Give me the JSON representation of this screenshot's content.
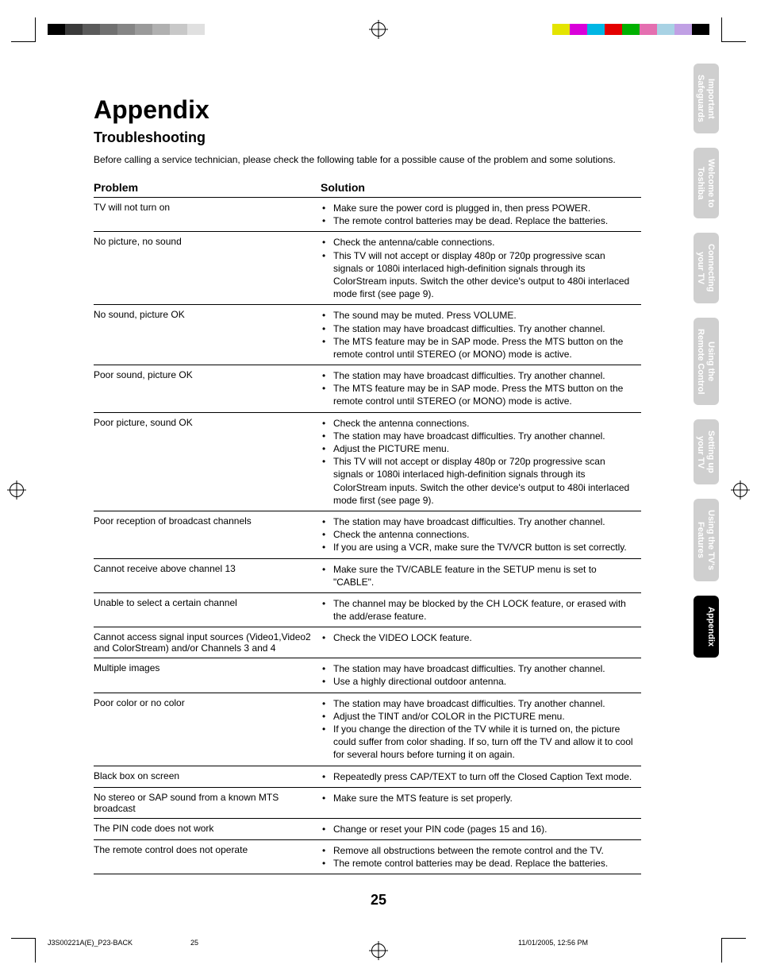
{
  "page": {
    "title": "Appendix",
    "subtitle": "Troubleshooting",
    "intro": "Before calling a service technician, please check the following table for a possible cause of the problem and some solutions.",
    "headers": {
      "problem": "Problem",
      "solution": "Solution"
    },
    "page_number": "25",
    "footer": {
      "doc": "J3S00221A(E)_P23-BACK",
      "page": "25",
      "date": "11/01/2005, 12:56 PM"
    }
  },
  "colorbars": {
    "left": [
      "#000000",
      "#3a3a3a",
      "#5a5a5a",
      "#707070",
      "#858585",
      "#9a9a9a",
      "#b0b0b0",
      "#c8c8c8",
      "#e0e0e0",
      "#ffffff"
    ],
    "right": [
      "#ffffff",
      "#e4e400",
      "#d900d9",
      "#00b6e4",
      "#e40000",
      "#00b000",
      "#e46fb0",
      "#a8d2e4",
      "#c0a0e4",
      "#000000"
    ]
  },
  "tabs": [
    {
      "label": "Important\nSafeguards",
      "active": false
    },
    {
      "label": "Welcome to\nToshiba",
      "active": false
    },
    {
      "label": "Connecting\nyour TV",
      "active": false
    },
    {
      "label": "Using the\nRemote Control",
      "active": false
    },
    {
      "label": "Setting up\nyour TV",
      "active": false
    },
    {
      "label": "Using the TV's\nFeatures",
      "active": false
    },
    {
      "label": "Appendix",
      "active": true
    }
  ],
  "rows": [
    {
      "problem": "TV will not turn on",
      "solutions": [
        "Make sure the power cord is plugged in, then press POWER.",
        "The remote control batteries may be dead. Replace the batteries."
      ]
    },
    {
      "problem": "No picture, no sound",
      "solutions": [
        "Check the antenna/cable connections.",
        "This TV will not accept or display 480p or 720p progressive scan signals or 1080i interlaced high-definition signals through its ColorStream inputs. Switch the other device's output to 480i interlaced mode first (see page 9)."
      ]
    },
    {
      "problem": "No sound, picture OK",
      "solutions": [
        "The sound may be muted. Press VOLUME.",
        "The station may have broadcast difficulties. Try another channel.",
        "The MTS feature may be in SAP mode. Press the MTS button on the remote control until STEREO (or MONO) mode is active."
      ]
    },
    {
      "problem": "Poor sound, picture OK",
      "solutions": [
        "The station may have broadcast difficulties. Try another channel.",
        "The MTS feature may be in SAP mode. Press the MTS button on the remote control until STEREO (or MONO) mode is active."
      ]
    },
    {
      "problem": "Poor picture, sound OK",
      "solutions": [
        "Check the antenna connections.",
        "The station may have broadcast difficulties. Try another channel.",
        "Adjust the PICTURE menu.",
        "This TV will not accept or display 480p or 720p progressive scan signals or 1080i interlaced high-definition signals through its ColorStream inputs. Switch the other device's output to 480i interlaced mode first (see page 9)."
      ]
    },
    {
      "problem": "Poor reception of broadcast channels",
      "solutions": [
        "The station may have broadcast difficulties. Try another channel.",
        "Check the antenna connections.",
        "If you are using a VCR, make sure the TV/VCR button is set correctly."
      ]
    },
    {
      "problem": "Cannot receive above channel 13",
      "solutions": [
        "Make sure the TV/CABLE feature in the SETUP menu is set to \"CABLE\"."
      ]
    },
    {
      "problem": "Unable to select a certain channel",
      "solutions": [
        "The channel may be blocked by the CH LOCK feature, or erased with the add/erase feature."
      ]
    },
    {
      "problem": "Cannot access signal input sources (Video1,Video2 and ColorStream) and/or Channels 3 and 4",
      "solutions": [
        "Check the VIDEO LOCK feature."
      ]
    },
    {
      "problem": "Multiple images",
      "solutions": [
        "The station may have broadcast difficulties. Try another channel.",
        "Use a highly directional outdoor antenna."
      ]
    },
    {
      "problem": "Poor color or no color",
      "solutions": [
        "The station may have broadcast difficulties. Try another channel.",
        "Adjust the TINT and/or COLOR in the PICTURE menu.",
        "If you change the direction of the TV while it is turned on, the picture could suffer from color shading. If so, turn off the TV and allow it to cool for several hours before turning it on again."
      ]
    },
    {
      "problem": "Black box on screen",
      "solutions": [
        "Repeatedly press CAP/TEXT to turn off the Closed Caption Text mode."
      ]
    },
    {
      "problem": "No stereo or SAP sound from a known MTS broadcast",
      "solutions": [
        "Make sure the MTS feature is set properly."
      ]
    },
    {
      "problem": "The PIN code does not work",
      "solutions": [
        "Change or reset your PIN code (pages 15 and 16)."
      ]
    },
    {
      "problem": "The remote control does not operate",
      "solutions": [
        "Remove all obstructions between the remote control and the TV.",
        "The remote control batteries may be dead. Replace the batteries."
      ]
    }
  ]
}
